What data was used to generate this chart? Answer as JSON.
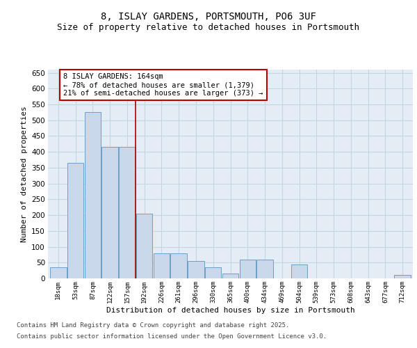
{
  "title_line1": "8, ISLAY GARDENS, PORTSMOUTH, PO6 3UF",
  "title_line2": "Size of property relative to detached houses in Portsmouth",
  "xlabel": "Distribution of detached houses by size in Portsmouth",
  "ylabel": "Number of detached properties",
  "bar_color": "#c8d8ea",
  "bar_edge_color": "#6b9fc8",
  "categories": [
    "18sqm",
    "53sqm",
    "87sqm",
    "122sqm",
    "157sqm",
    "192sqm",
    "226sqm",
    "261sqm",
    "296sqm",
    "330sqm",
    "365sqm",
    "400sqm",
    "434sqm",
    "469sqm",
    "504sqm",
    "539sqm",
    "573sqm",
    "608sqm",
    "643sqm",
    "677sqm",
    "712sqm"
  ],
  "values": [
    35,
    365,
    525,
    415,
    415,
    205,
    80,
    80,
    55,
    35,
    15,
    60,
    60,
    0,
    45,
    0,
    0,
    0,
    0,
    0,
    10
  ],
  "ylim": [
    0,
    660
  ],
  "yticks": [
    0,
    50,
    100,
    150,
    200,
    250,
    300,
    350,
    400,
    450,
    500,
    550,
    600,
    650
  ],
  "vline_color": "#aa0000",
  "annotation_text_line1": "8 ISLAY GARDENS: 164sqm",
  "annotation_text_line2": "← 78% of detached houses are smaller (1,379)",
  "annotation_text_line3": "21% of semi-detached houses are larger (373) →",
  "grid_color": "#c8d4df",
  "background_color": "#e4edf5",
  "footer_line1": "Contains HM Land Registry data © Crown copyright and database right 2025.",
  "footer_line2": "Contains public sector information licensed under the Open Government Licence v3.0.",
  "title_fontsize": 10,
  "subtitle_fontsize": 9,
  "annotation_fontsize": 7.5,
  "footer_fontsize": 6.5,
  "ylabel_fontsize": 8,
  "xlabel_fontsize": 8
}
